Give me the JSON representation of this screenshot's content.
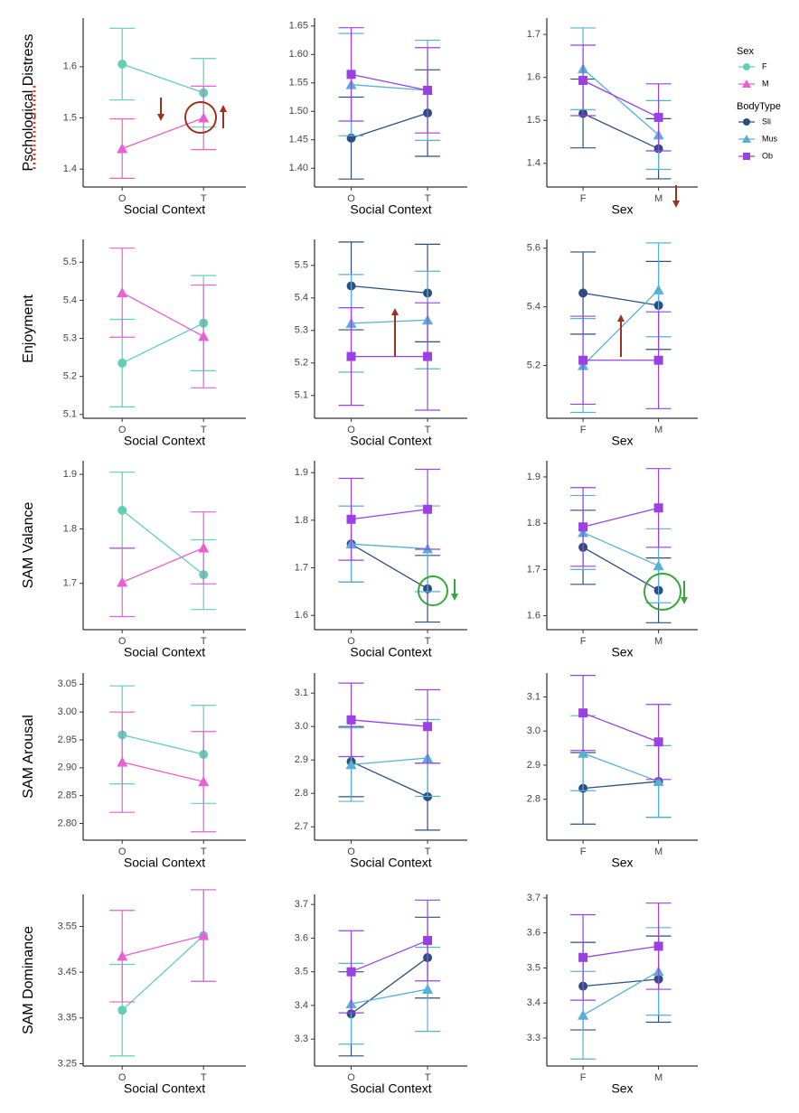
{
  "chart_data": [
    {
      "type": "line",
      "categories": [
        "O",
        "T"
      ],
      "x_label": "Social Context",
      "y_label": "Pschological Distress",
      "legend_title": "Sex",
      "ylim": [
        1.365,
        1.695
      ],
      "yticks": [
        1.4,
        1.5,
        1.6
      ],
      "series": [
        {
          "name": "F",
          "color": "#5fd0b3",
          "marker": "circle",
          "values": [
            1.605,
            1.549
          ],
          "errors": [
            0.07,
            0.067
          ]
        },
        {
          "name": "M",
          "color": "#e85fd6",
          "marker": "triangle",
          "values": [
            1.44,
            1.5
          ],
          "errors": [
            0.058,
            0.062
          ]
        }
      ]
    },
    {
      "type": "line",
      "categories": [
        "O",
        "T"
      ],
      "x_label": "Social Context",
      "legend_title": "BodyType",
      "ylim": [
        1.367,
        1.664
      ],
      "yticks": [
        {
          "value": 1.4,
          "label": "1.40"
        },
        1.45,
        {
          "value": 1.5,
          "label": "1.50"
        },
        1.55,
        {
          "value": 1.6,
          "label": "1.60"
        },
        1.65
      ],
      "series": [
        {
          "name": "Sli",
          "color": "#2d4f7f",
          "marker": "circle",
          "values": [
            1.453,
            1.497
          ],
          "errors": [
            0.072,
            0.076
          ]
        },
        {
          "name": "Mus",
          "color": "#56b0d8",
          "marker": "triangle",
          "values": [
            1.547,
            1.537
          ],
          "errors": [
            0.09,
            0.088
          ]
        },
        {
          "name": "Ob",
          "color": "#9b41e2",
          "marker": "square",
          "values": [
            1.565,
            1.537
          ],
          "errors": [
            0.082,
            0.075
          ]
        }
      ]
    },
    {
      "type": "line",
      "categories": [
        "F",
        "M"
      ],
      "x_label": "Sex",
      "ylim": [
        1.345,
        1.738
      ],
      "yticks": [
        1.4,
        1.5,
        1.6,
        1.7
      ],
      "series": [
        {
          "name": "Sli",
          "color": "#2d4f7f",
          "marker": "circle",
          "values": [
            1.516,
            1.434
          ],
          "errors": [
            0.08,
            0.07
          ]
        },
        {
          "name": "Mus",
          "color": "#56b0d8",
          "marker": "triangle",
          "values": [
            1.62,
            1.466
          ],
          "errors": [
            0.095,
            0.08
          ]
        },
        {
          "name": "Ob",
          "color": "#9b41e2",
          "marker": "square",
          "values": [
            1.593,
            1.507
          ],
          "errors": [
            0.082,
            0.078
          ]
        }
      ]
    },
    {
      "type": "line",
      "categories": [
        "O",
        "T"
      ],
      "x_label": "Social Context",
      "y_label": "Enjoyment",
      "ylim": [
        5.09,
        5.56
      ],
      "yticks": [
        5.1,
        5.2,
        5.3,
        5.4,
        5.5
      ],
      "series": [
        {
          "name": "F",
          "color": "#5fd0b3",
          "marker": "circle",
          "values": [
            5.235,
            5.34
          ],
          "errors": [
            0.115,
            0.125
          ]
        },
        {
          "name": "M",
          "color": "#e85fd6",
          "marker": "triangle",
          "values": [
            5.42,
            5.305
          ],
          "errors": [
            0.117,
            0.135
          ]
        }
      ]
    },
    {
      "type": "line",
      "categories": [
        "O",
        "T"
      ],
      "x_label": "Social Context",
      "ylim": [
        5.03,
        5.58
      ],
      "yticks": [
        5.1,
        5.2,
        5.3,
        5.4,
        5.5
      ],
      "series": [
        {
          "name": "Sli",
          "color": "#2d4f7f",
          "marker": "circle",
          "values": [
            5.437,
            5.415
          ],
          "errors": [
            0.135,
            0.15
          ]
        },
        {
          "name": "Mus",
          "color": "#56b0d8",
          "marker": "triangle",
          "values": [
            5.322,
            5.332
          ],
          "errors": [
            0.15,
            0.15
          ]
        },
        {
          "name": "Ob",
          "color": "#9b41e2",
          "marker": "square",
          "values": [
            5.22,
            5.22
          ],
          "errors": [
            0.15,
            0.165
          ]
        }
      ]
    },
    {
      "type": "line",
      "categories": [
        "F",
        "M"
      ],
      "x_label": "Sex",
      "ylim": [
        5.02,
        5.63
      ],
      "yticks": [
        5.2,
        5.4,
        5.6
      ],
      "series": [
        {
          "name": "Sli",
          "color": "#2d4f7f",
          "marker": "circle",
          "values": [
            5.447,
            5.405
          ],
          "errors": [
            0.14,
            0.15
          ]
        },
        {
          "name": "Mus",
          "color": "#56b0d8",
          "marker": "triangle",
          "values": [
            5.2,
            5.458
          ],
          "errors": [
            0.16,
            0.16
          ]
        },
        {
          "name": "Ob",
          "color": "#9b41e2",
          "marker": "square",
          "values": [
            5.218,
            5.218
          ],
          "errors": [
            0.15,
            0.165
          ]
        }
      ]
    },
    {
      "type": "line",
      "categories": [
        "O",
        "T"
      ],
      "x_label": "Social Context",
      "y_label": "SAM Valance",
      "ylim": [
        1.615,
        1.925
      ],
      "yticks": [
        1.7,
        1.8,
        1.9
      ],
      "series": [
        {
          "name": "F",
          "color": "#5fd0b3",
          "marker": "circle",
          "values": [
            1.834,
            1.716
          ],
          "errors": [
            0.07,
            0.064
          ]
        },
        {
          "name": "M",
          "color": "#e85fd6",
          "marker": "triangle",
          "values": [
            1.702,
            1.765
          ],
          "errors": [
            0.063,
            0.066
          ]
        }
      ]
    },
    {
      "type": "line",
      "categories": [
        "O",
        "T"
      ],
      "x_label": "Social Context",
      "ylim": [
        1.57,
        1.925
      ],
      "yticks": [
        1.6,
        1.7,
        1.8,
        1.9
      ],
      "series": [
        {
          "name": "Sli",
          "color": "#2d4f7f",
          "marker": "circle",
          "values": [
            1.75,
            1.656
          ],
          "errors": [
            0.08,
            0.07
          ]
        },
        {
          "name": "Mus",
          "color": "#56b0d8",
          "marker": "triangle",
          "values": [
            1.75,
            1.74
          ],
          "errors": [
            0.08,
            0.09
          ]
        },
        {
          "name": "Ob",
          "color": "#9b41e2",
          "marker": "square",
          "values": [
            1.802,
            1.823
          ],
          "errors": [
            0.086,
            0.084
          ]
        }
      ]
    },
    {
      "type": "line",
      "categories": [
        "F",
        "M"
      ],
      "x_label": "Sex",
      "ylim": [
        1.57,
        1.935
      ],
      "yticks": [
        1.6,
        1.7,
        1.8,
        1.9
      ],
      "series": [
        {
          "name": "Sli",
          "color": "#2d4f7f",
          "marker": "circle",
          "values": [
            1.748,
            1.655
          ],
          "errors": [
            0.08,
            0.07
          ]
        },
        {
          "name": "Mus",
          "color": "#56b0d8",
          "marker": "triangle",
          "values": [
            1.78,
            1.708
          ],
          "errors": [
            0.08,
            0.08
          ]
        },
        {
          "name": "Ob",
          "color": "#9b41e2",
          "marker": "square",
          "values": [
            1.792,
            1.833
          ],
          "errors": [
            0.085,
            0.085
          ]
        }
      ]
    },
    {
      "type": "line",
      "categories": [
        "O",
        "T"
      ],
      "x_label": "Social Context",
      "y_label": "SAM Arousal",
      "ylim": [
        2.77,
        3.07
      ],
      "yticks": [
        {
          "value": 2.8,
          "label": "2.80"
        },
        2.85,
        {
          "value": 2.9,
          "label": "2.90"
        },
        2.95,
        {
          "value": 3,
          "label": "3.00"
        },
        3.05
      ],
      "series": [
        {
          "name": "F",
          "color": "#5fd0b3",
          "marker": "circle",
          "values": [
            2.959,
            2.924
          ],
          "errors": [
            0.088,
            0.088
          ]
        },
        {
          "name": "M",
          "color": "#e85fd6",
          "marker": "triangle",
          "values": [
            2.91,
            2.875
          ],
          "errors": [
            0.09,
            0.09
          ]
        }
      ]
    },
    {
      "type": "line",
      "categories": [
        "O",
        "T"
      ],
      "x_label": "Social Context",
      "ylim": [
        2.66,
        3.16
      ],
      "yticks": [
        2.7,
        2.8,
        2.9,
        {
          "value": 3,
          "label": "3.0"
        },
        3.1
      ],
      "series": [
        {
          "name": "Sli",
          "color": "#2d4f7f",
          "marker": "circle",
          "values": [
            2.895,
            2.79
          ],
          "errors": [
            0.105,
            0.1
          ]
        },
        {
          "name": "Mus",
          "color": "#56b0d8",
          "marker": "triangle",
          "values": [
            2.886,
            2.906
          ],
          "errors": [
            0.11,
            0.115
          ]
        },
        {
          "name": "Ob",
          "color": "#9b41e2",
          "marker": "square",
          "values": [
            3.02,
            3.0
          ],
          "errors": [
            0.11,
            0.11
          ]
        }
      ]
    },
    {
      "type": "line",
      "categories": [
        "F",
        "M"
      ],
      "x_label": "Sex",
      "ylim": [
        2.68,
        3.17
      ],
      "yticks": [
        2.8,
        2.9,
        {
          "value": 3,
          "label": "3.0"
        },
        3.1
      ],
      "series": [
        {
          "name": "Sli",
          "color": "#2d4f7f",
          "marker": "circle",
          "values": [
            2.832,
            2.852
          ],
          "errors": [
            0.105,
            0.105
          ]
        },
        {
          "name": "Mus",
          "color": "#56b0d8",
          "marker": "triangle",
          "values": [
            2.935,
            2.852
          ],
          "errors": [
            0.11,
            0.105
          ]
        },
        {
          "name": "Ob",
          "color": "#9b41e2",
          "marker": "square",
          "values": [
            3.053,
            2.968
          ],
          "errors": [
            0.11,
            0.11
          ]
        }
      ]
    },
    {
      "type": "line",
      "categories": [
        "O",
        "T"
      ],
      "x_label": "Social Context",
      "y_label": "SAM Dominance",
      "ylim": [
        3.245,
        3.62
      ],
      "yticks": [
        3.25,
        3.35,
        3.45,
        3.55
      ],
      "series": [
        {
          "name": "F",
          "color": "#5fd0b3",
          "marker": "circle",
          "values": [
            3.367,
            3.53
          ],
          "errors": [
            0.1,
            0.1
          ]
        },
        {
          "name": "M",
          "color": "#e85fd6",
          "marker": "triangle",
          "values": [
            3.485,
            3.53
          ],
          "errors": [
            0.1,
            0.1
          ]
        }
      ]
    },
    {
      "type": "line",
      "categories": [
        "O",
        "T"
      ],
      "x_label": "Social Context",
      "ylim": [
        3.22,
        3.73
      ],
      "yticks": [
        3.3,
        3.4,
        3.5,
        3.6,
        3.7
      ],
      "series": [
        {
          "name": "Sli",
          "color": "#2d4f7f",
          "marker": "circle",
          "values": [
            3.375,
            3.542
          ],
          "errors": [
            0.125,
            0.12
          ]
        },
        {
          "name": "Mus",
          "color": "#56b0d8",
          "marker": "triangle",
          "values": [
            3.405,
            3.448
          ],
          "errors": [
            0.12,
            0.125
          ]
        },
        {
          "name": "Ob",
          "color": "#9b41e2",
          "marker": "square",
          "values": [
            3.5,
            3.593
          ],
          "errors": [
            0.122,
            0.12
          ]
        }
      ]
    },
    {
      "type": "line",
      "categories": [
        "F",
        "M"
      ],
      "x_label": "Sex",
      "ylim": [
        3.22,
        3.71
      ],
      "yticks": [
        3.3,
        3.4,
        3.5,
        3.6,
        3.7
      ],
      "series": [
        {
          "name": "Sli",
          "color": "#2d4f7f",
          "marker": "circle",
          "values": [
            3.448,
            3.468
          ],
          "errors": [
            0.125,
            0.123
          ]
        },
        {
          "name": "Mus",
          "color": "#56b0d8",
          "marker": "triangle",
          "values": [
            3.365,
            3.49
          ],
          "errors": [
            0.125,
            0.125
          ]
        },
        {
          "name": "Ob",
          "color": "#9b41e2",
          "marker": "square",
          "values": [
            3.53,
            3.562
          ],
          "errors": [
            0.122,
            0.123
          ]
        }
      ]
    }
  ]
}
